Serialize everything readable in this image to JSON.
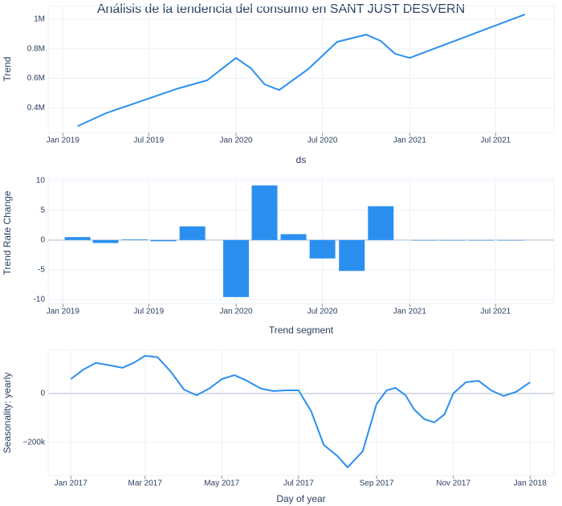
{
  "chart_data": [
    {
      "type": "line",
      "title": "Análisis de la tendencia del consumo en SANT JUST DESVERN",
      "xlabel": "ds",
      "ylabel": "Trend",
      "color": "#2b8ff0",
      "grid": true,
      "x": [
        "2019-02",
        "2019-04",
        "2019-09",
        "2019-11",
        "2020-01",
        "2020-02",
        "2020-03",
        "2020-04",
        "2020-06",
        "2020-08",
        "2020-10",
        "2020-11",
        "2020-12",
        "2021-01",
        "2021-09"
      ],
      "values": [
        275000,
        362000,
        531000,
        586000,
        738000,
        668000,
        559000,
        520000,
        662000,
        847000,
        896000,
        853000,
        766000,
        738000,
        1033000
      ],
      "xlim": [
        "2018-12",
        "2021-11"
      ],
      "xticks": [
        {
          "value": "2019-01",
          "label": "Jan 2019"
        },
        {
          "value": "2019-07",
          "label": "Jul 2019"
        },
        {
          "value": "2020-01",
          "label": "Jan 2020"
        },
        {
          "value": "2020-07",
          "label": "Jul 2020"
        },
        {
          "value": "2021-01",
          "label": "Jan 2021"
        },
        {
          "value": "2021-07",
          "label": "Jul 2021"
        }
      ],
      "ylim": [
        232000,
        1087000
      ],
      "yticks": [
        {
          "value": 400000,
          "label": "0.4M"
        },
        {
          "value": 600000,
          "label": "0.6M"
        },
        {
          "value": 800000,
          "label": "0.8M"
        },
        {
          "value": 1000000,
          "label": "1M"
        }
      ]
    },
    {
      "type": "bar",
      "xlabel": "Trend segment",
      "ylabel": "Trend Rate Change",
      "color": "#2b8ff0",
      "grid": true,
      "x": [
        "2019-02",
        "2019-04",
        "2019-06",
        "2019-08",
        "2019-10",
        "2020-01",
        "2020-03",
        "2020-05",
        "2020-07",
        "2020-09",
        "2020-11",
        "2021-02",
        "2021-04",
        "2021-06",
        "2021-08"
      ],
      "values": [
        0.5,
        -0.5,
        0.1,
        -0.2,
        2.3,
        -9.6,
        9.2,
        1.0,
        -3.1,
        -5.2,
        5.7,
        0,
        0,
        0,
        0
      ],
      "xlim": [
        "2018-12",
        "2021-11"
      ],
      "xticks": [
        {
          "value": "2019-01",
          "label": "Jan 2019"
        },
        {
          "value": "2019-07",
          "label": "Jul 2019"
        },
        {
          "value": "2020-01",
          "label": "Jan 2020"
        },
        {
          "value": "2020-07",
          "label": "Jul 2020"
        },
        {
          "value": "2021-01",
          "label": "Jan 2021"
        },
        {
          "value": "2021-07",
          "label": "Jul 2021"
        }
      ],
      "ylim": [
        -10.7,
        10.4
      ],
      "yticks": [
        -10,
        -5,
        0,
        5,
        10
      ]
    },
    {
      "type": "line",
      "xlabel": "Day of year",
      "ylabel": "Seasonality: yearly",
      "color": "#2b8ff0",
      "grid": true,
      "x": [
        "2017-01-01",
        "2017-01-11",
        "2017-01-21",
        "2017-02-01",
        "2017-02-11",
        "2017-02-20",
        "2017-03-01",
        "2017-03-11",
        "2017-03-21",
        "2017-04-01",
        "2017-04-11",
        "2017-04-21",
        "2017-05-01",
        "2017-05-11",
        "2017-05-21",
        "2017-06-01",
        "2017-06-11",
        "2017-06-21",
        "2017-07-01",
        "2017-07-11",
        "2017-07-21",
        "2017-08-01",
        "2017-08-09",
        "2017-08-21",
        "2017-09-01",
        "2017-09-09",
        "2017-09-16",
        "2017-09-24",
        "2017-10-01",
        "2017-10-09",
        "2017-10-17",
        "2017-10-25",
        "2017-11-01",
        "2017-11-11",
        "2017-11-21",
        "2017-12-01",
        "2017-12-11",
        "2017-12-21",
        "2018-01-01"
      ],
      "values": [
        59000,
        98000,
        125000,
        115000,
        105000,
        125000,
        154000,
        148000,
        92000,
        16000,
        -7000,
        20000,
        59000,
        75000,
        52000,
        20000,
        10000,
        13000,
        13000,
        -72000,
        -210000,
        -256000,
        -302000,
        -236000,
        -43000,
        13000,
        23000,
        -7000,
        -66000,
        -105000,
        -118000,
        -85000,
        0,
        46000,
        52000,
        13000,
        -10000,
        7000,
        46000
      ],
      "xlim": [
        "2016-12-14",
        "2018-01-20"
      ],
      "xticks": [
        {
          "value": "2017-01-01",
          "label": "Jan 2017"
        },
        {
          "value": "2017-03-01",
          "label": "Mar 2017"
        },
        {
          "value": "2017-05-01",
          "label": "May 2017"
        },
        {
          "value": "2017-07-01",
          "label": "Jul 2017"
        },
        {
          "value": "2017-09-01",
          "label": "Sep 2017"
        },
        {
          "value": "2017-11-01",
          "label": "Nov 2017"
        },
        {
          "value": "2018-01-01",
          "label": "Jan 2018"
        }
      ],
      "ylim": [
        -335000,
        177000
      ],
      "yticks": [
        {
          "value": -200000,
          "label": "−200k"
        },
        0
      ]
    }
  ]
}
